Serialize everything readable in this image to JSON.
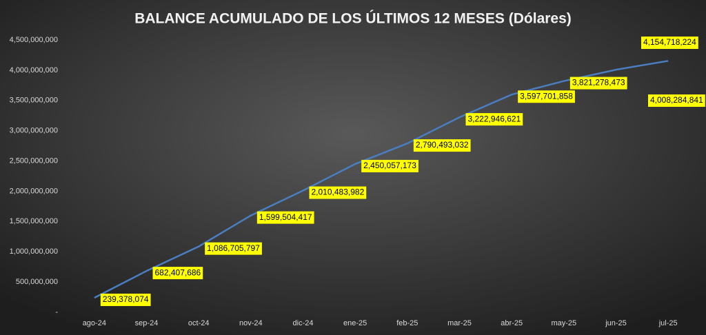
{
  "chart_data": {
    "type": "line",
    "title": "BALANCE ACUMULADO DE LOS ÚLTIMOS 12 MESES (Dólares)",
    "categories": [
      "ago-24",
      "sep-24",
      "oct-24",
      "nov-24",
      "dic-24",
      "ene-25",
      "feb-25",
      "mar-25",
      "abr-25",
      "may-25",
      "jun-25",
      "jul-25"
    ],
    "series": [
      {
        "color": "#4a7ec0",
        "values": [
          239378074,
          682407686,
          1086705797,
          1599504417,
          2010483982,
          2450057173,
          2790493032,
          3222946621,
          3597701858,
          3821278473,
          4008284841,
          4154718224
        ],
        "value_labels": [
          "239,378,074",
          "682,407,686",
          "1,086,705,797",
          "1,599,504,417",
          "2,010,483,982",
          "2,450,057,173",
          "2,790,493,032",
          "3,222,946,621",
          "3,597,701,858",
          "3,821,278,473",
          "4,008,284,841",
          "4,154,718,224"
        ]
      }
    ],
    "ylim": [
      0,
      4500000000
    ],
    "yticks": [
      {
        "value": 0,
        "label": "-"
      },
      {
        "value": 500000000,
        "label": "500,000,000"
      },
      {
        "value": 1000000000,
        "label": "1,000,000,000"
      },
      {
        "value": 1500000000,
        "label": "1,500,000,000"
      },
      {
        "value": 2000000000,
        "label": "2,000,000,000"
      },
      {
        "value": 2500000000,
        "label": "2,500,000,000"
      },
      {
        "value": 3000000000,
        "label": "3,000,000,000"
      },
      {
        "value": 3500000000,
        "label": "3,500,000,000"
      },
      {
        "value": 4000000000,
        "label": "4,000,000,000"
      },
      {
        "value": 4500000000,
        "label": "4,500,000,000"
      }
    ],
    "grid": false,
    "label_background": "#ffff00"
  }
}
